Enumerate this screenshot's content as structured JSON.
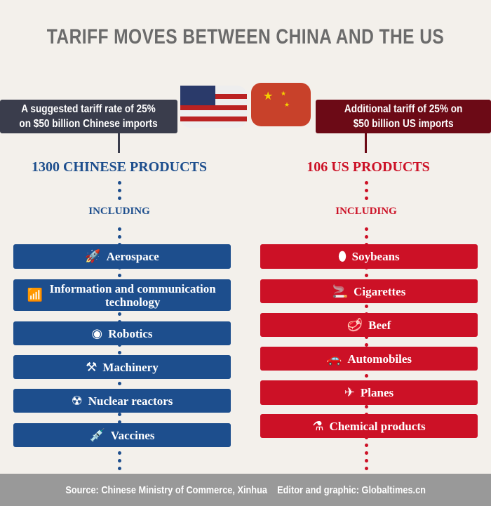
{
  "title": "TARIFF MOVES BETWEEN CHINA AND THE US",
  "left": {
    "box": [
      "A suggested tariff rate of 25%",
      "on $50 billion Chinese imports"
    ],
    "heading": "1300 CHINESE PRODUCTS",
    "including": "INCLUDING",
    "color": "#1d4e8d",
    "items": [
      {
        "label": "Aerospace",
        "icon": "rocket-icon"
      },
      {
        "label": "Information and communication technology",
        "icon": "wifi-icon"
      },
      {
        "label": "Robotics",
        "icon": "robot-icon"
      },
      {
        "label": "Machinery",
        "icon": "robot-arm-icon"
      },
      {
        "label": "Nuclear reactors",
        "icon": "radiation-icon"
      },
      {
        "label": "Vaccines",
        "icon": "syringe-icon"
      }
    ]
  },
  "right": {
    "box": [
      "Additional tariff of 25% on",
      "$50 billion US imports"
    ],
    "heading": "106 US PRODUCTS",
    "including": "INCLUDING",
    "color": "#cc1126",
    "items": [
      {
        "label": "Soybeans",
        "icon": "soybean-icon"
      },
      {
        "label": "Cigarettes",
        "icon": "cigarette-icon"
      },
      {
        "label": "Beef",
        "icon": "steak-icon"
      },
      {
        "label": "Automobiles",
        "icon": "car-icon"
      },
      {
        "label": "Planes",
        "icon": "plane-icon"
      },
      {
        "label": "Chemical products",
        "icon": "flask-icon"
      }
    ]
  },
  "footer": "Source: Chinese Ministry of Commerce, Xinhua    Editor and graphic: Globaltimes.cn"
}
